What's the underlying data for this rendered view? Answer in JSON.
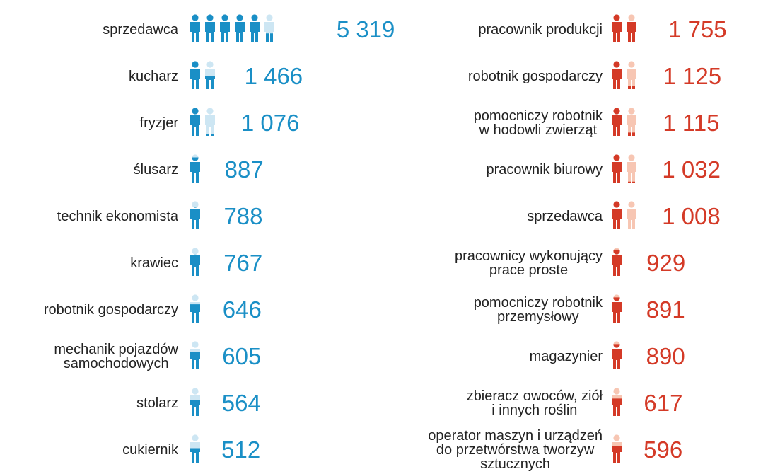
{
  "chart_data": [
    {
      "type": "pictogram",
      "color": "#1a8fc6",
      "light_color": "#cde6f3",
      "icon_value": 1000,
      "categories": [
        "sprzedawca",
        "kucharz",
        "fryzjer",
        "ślusarz",
        "technik ekonomista",
        "krawiec",
        "robotnik gospodarczy",
        "mechanik pojazdów\nsamochodowych",
        "stolarz",
        "cukiernik"
      ],
      "values": [
        5319,
        1466,
        1076,
        887,
        788,
        767,
        646,
        605,
        564,
        512
      ],
      "value_labels": [
        "5 319",
        "1 466",
        "1 076",
        "887",
        "788",
        "767",
        "646",
        "605",
        "564",
        "512"
      ]
    },
    {
      "type": "pictogram",
      "color": "#d43a27",
      "light_color": "#f7c6b3",
      "icon_value": 1000,
      "categories": [
        "pracownik produkcji",
        "robotnik gospodarczy",
        "pomocniczy robotnik\nw hodowli zwierząt",
        "pracownik biurowy",
        "sprzedawca",
        "pracownicy wykonujący\nprace proste",
        "pomocniczy robotnik\nprzemysłowy",
        "magazynier",
        "zbieracz owoców, ziół\ni innych roślin",
        "operator maszyn i urządzeń\ndo przetwórstwa tworzyw\nsztucznych"
      ],
      "values": [
        1755,
        1125,
        1115,
        1032,
        1008,
        929,
        891,
        890,
        617,
        596
      ],
      "value_labels": [
        "1 755",
        "1 125",
        "1 115",
        "1 032",
        "1 008",
        "929",
        "891",
        "890",
        "617",
        "596"
      ]
    }
  ]
}
